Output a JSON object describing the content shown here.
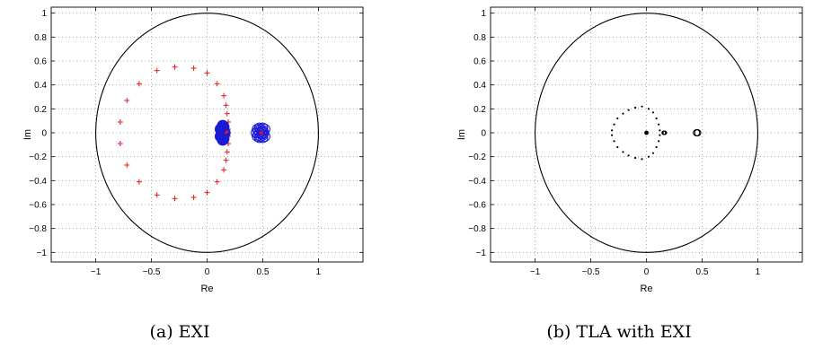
{
  "chart_data": [
    {
      "type": "scatter",
      "caption": "(a) EXI",
      "xlabel": "Re",
      "ylabel": "Im",
      "xlim": [
        -1.4,
        1.4
      ],
      "ylim": [
        -1.08,
        1.05
      ],
      "xticks": [
        -1,
        -0.5,
        0,
        0.5,
        1
      ],
      "yticks": [
        -1,
        -0.8,
        -0.6,
        -0.4,
        -0.2,
        0,
        0.2,
        0.4,
        0.6,
        0.8,
        1
      ],
      "xtick_labels": [
        "−1",
        "−0.5",
        "0",
        "0.5",
        "1"
      ],
      "ytick_labels": [
        "−1",
        "−0.8",
        "−0.6",
        "−0.4",
        "−0.2",
        "0",
        "0.2",
        "0.4",
        "0.6",
        "0.8",
        "1"
      ],
      "grid": true,
      "unit_circle": true,
      "series": [
        {
          "marker": "cross",
          "color": "#e8161b",
          "points": [
            [
              -0.29,
              0.55
            ],
            [
              -0.12,
              0.54
            ],
            [
              0.0,
              0.5
            ],
            [
              0.09,
              0.41
            ],
            [
              0.15,
              0.31
            ],
            [
              0.17,
              0.23
            ],
            [
              0.18,
              0.16
            ],
            [
              0.19,
              0.09
            ],
            [
              0.19,
              0.03
            ],
            [
              0.19,
              -0.03
            ],
            [
              0.19,
              -0.09
            ],
            [
              0.18,
              -0.16
            ],
            [
              0.17,
              -0.23
            ],
            [
              0.15,
              -0.31
            ],
            [
              0.09,
              -0.41
            ],
            [
              0.0,
              -0.5
            ],
            [
              -0.12,
              -0.54
            ],
            [
              -0.29,
              -0.55
            ],
            [
              -0.45,
              -0.52
            ],
            [
              -0.61,
              -0.41
            ],
            [
              -0.72,
              -0.27
            ],
            [
              -0.78,
              -0.09
            ],
            [
              -0.78,
              0.09
            ],
            [
              -0.72,
              0.27
            ],
            [
              -0.61,
              0.41
            ],
            [
              -0.45,
              0.52
            ]
          ]
        },
        {
          "marker": "filled-circle",
          "color": "#1a1ad6",
          "points": [
            [
              0.12,
              0.03
            ],
            [
              0.12,
              -0.03
            ],
            [
              0.13,
              0.04
            ],
            [
              0.13,
              -0.04
            ],
            [
              0.14,
              0.02
            ],
            [
              0.14,
              -0.02
            ],
            [
              0.15,
              0.05
            ],
            [
              0.15,
              -0.05
            ],
            [
              0.16,
              0.0
            ],
            [
              0.13,
              0.0
            ],
            [
              0.14,
              0.06
            ],
            [
              0.14,
              -0.06
            ]
          ]
        },
        {
          "marker": "open-circle",
          "color": "#1a1ad6",
          "points": [
            [
              0.44,
              0.0
            ],
            [
              0.45,
              0.03
            ],
            [
              0.45,
              -0.03
            ],
            [
              0.46,
              0.02
            ],
            [
              0.46,
              -0.02
            ],
            [
              0.47,
              0.0
            ],
            [
              0.48,
              0.03
            ],
            [
              0.48,
              -0.03
            ],
            [
              0.49,
              0.01
            ],
            [
              0.49,
              -0.01
            ],
            [
              0.5,
              0.02
            ],
            [
              0.5,
              -0.02
            ],
            [
              0.51,
              0.0
            ],
            [
              0.52,
              0.03
            ],
            [
              0.52,
              -0.03
            ],
            [
              0.47,
              0.04
            ],
            [
              0.47,
              -0.04
            ],
            [
              0.5,
              0.04
            ],
            [
              0.5,
              -0.04
            ]
          ]
        },
        {
          "marker": "small-cross",
          "color": "#e8161b",
          "points": [
            [
              0.17,
              0.0
            ],
            [
              0.18,
              0.01
            ],
            [
              0.48,
              0.0
            ],
            [
              0.49,
              0.0
            ]
          ]
        }
      ]
    },
    {
      "type": "scatter",
      "caption": "(b) TLA with EXI",
      "xlabel": "Re",
      "ylabel": "Im",
      "xlim": [
        -1.4,
        1.4
      ],
      "ylim": [
        -1.08,
        1.05
      ],
      "xticks": [
        -1,
        -0.5,
        0,
        0.5,
        1
      ],
      "yticks": [
        -1,
        -0.8,
        -0.6,
        -0.4,
        -0.2,
        0,
        0.2,
        0.4,
        0.6,
        0.8,
        1
      ],
      "xtick_labels": [
        "−1",
        "−0.5",
        "0",
        "0.5",
        "1"
      ],
      "ytick_labels": [
        "−1",
        "−0.8",
        "−0.6",
        "−0.4",
        "−0.2",
        "0",
        "0.2",
        "0.4",
        "0.6",
        "0.8",
        "1"
      ],
      "grid": true,
      "unit_circle": true,
      "series": [
        {
          "marker": "dot",
          "color": "#000000",
          "points": [
            [
              -0.04,
              0.22
            ],
            [
              0.02,
              0.2
            ],
            [
              0.06,
              0.17
            ],
            [
              0.09,
              0.12
            ],
            [
              0.11,
              0.07
            ],
            [
              0.12,
              0.02
            ],
            [
              0.12,
              -0.02
            ],
            [
              0.11,
              -0.07
            ],
            [
              0.09,
              -0.12
            ],
            [
              0.06,
              -0.17
            ],
            [
              0.02,
              -0.2
            ],
            [
              -0.04,
              -0.22
            ],
            [
              -0.1,
              -0.21
            ],
            [
              -0.16,
              -0.19
            ],
            [
              -0.21,
              -0.16
            ],
            [
              -0.26,
              -0.12
            ],
            [
              -0.29,
              -0.07
            ],
            [
              -0.31,
              -0.02
            ],
            [
              -0.31,
              0.02
            ],
            [
              -0.29,
              0.07
            ],
            [
              -0.26,
              0.12
            ],
            [
              -0.21,
              0.16
            ],
            [
              -0.16,
              0.19
            ],
            [
              -0.1,
              0.21
            ]
          ]
        },
        {
          "marker": "filled-circle",
          "color": "#000000",
          "points": [
            [
              0.0,
              0.0
            ]
          ]
        },
        {
          "marker": "open-circle",
          "color": "#000000",
          "points": [
            [
              0.155,
              0.0
            ],
            [
              0.16,
              0.0
            ],
            [
              0.165,
              0.0
            ],
            [
              0.45,
              0.0
            ],
            [
              0.46,
              0.0
            ]
          ]
        }
      ]
    }
  ]
}
